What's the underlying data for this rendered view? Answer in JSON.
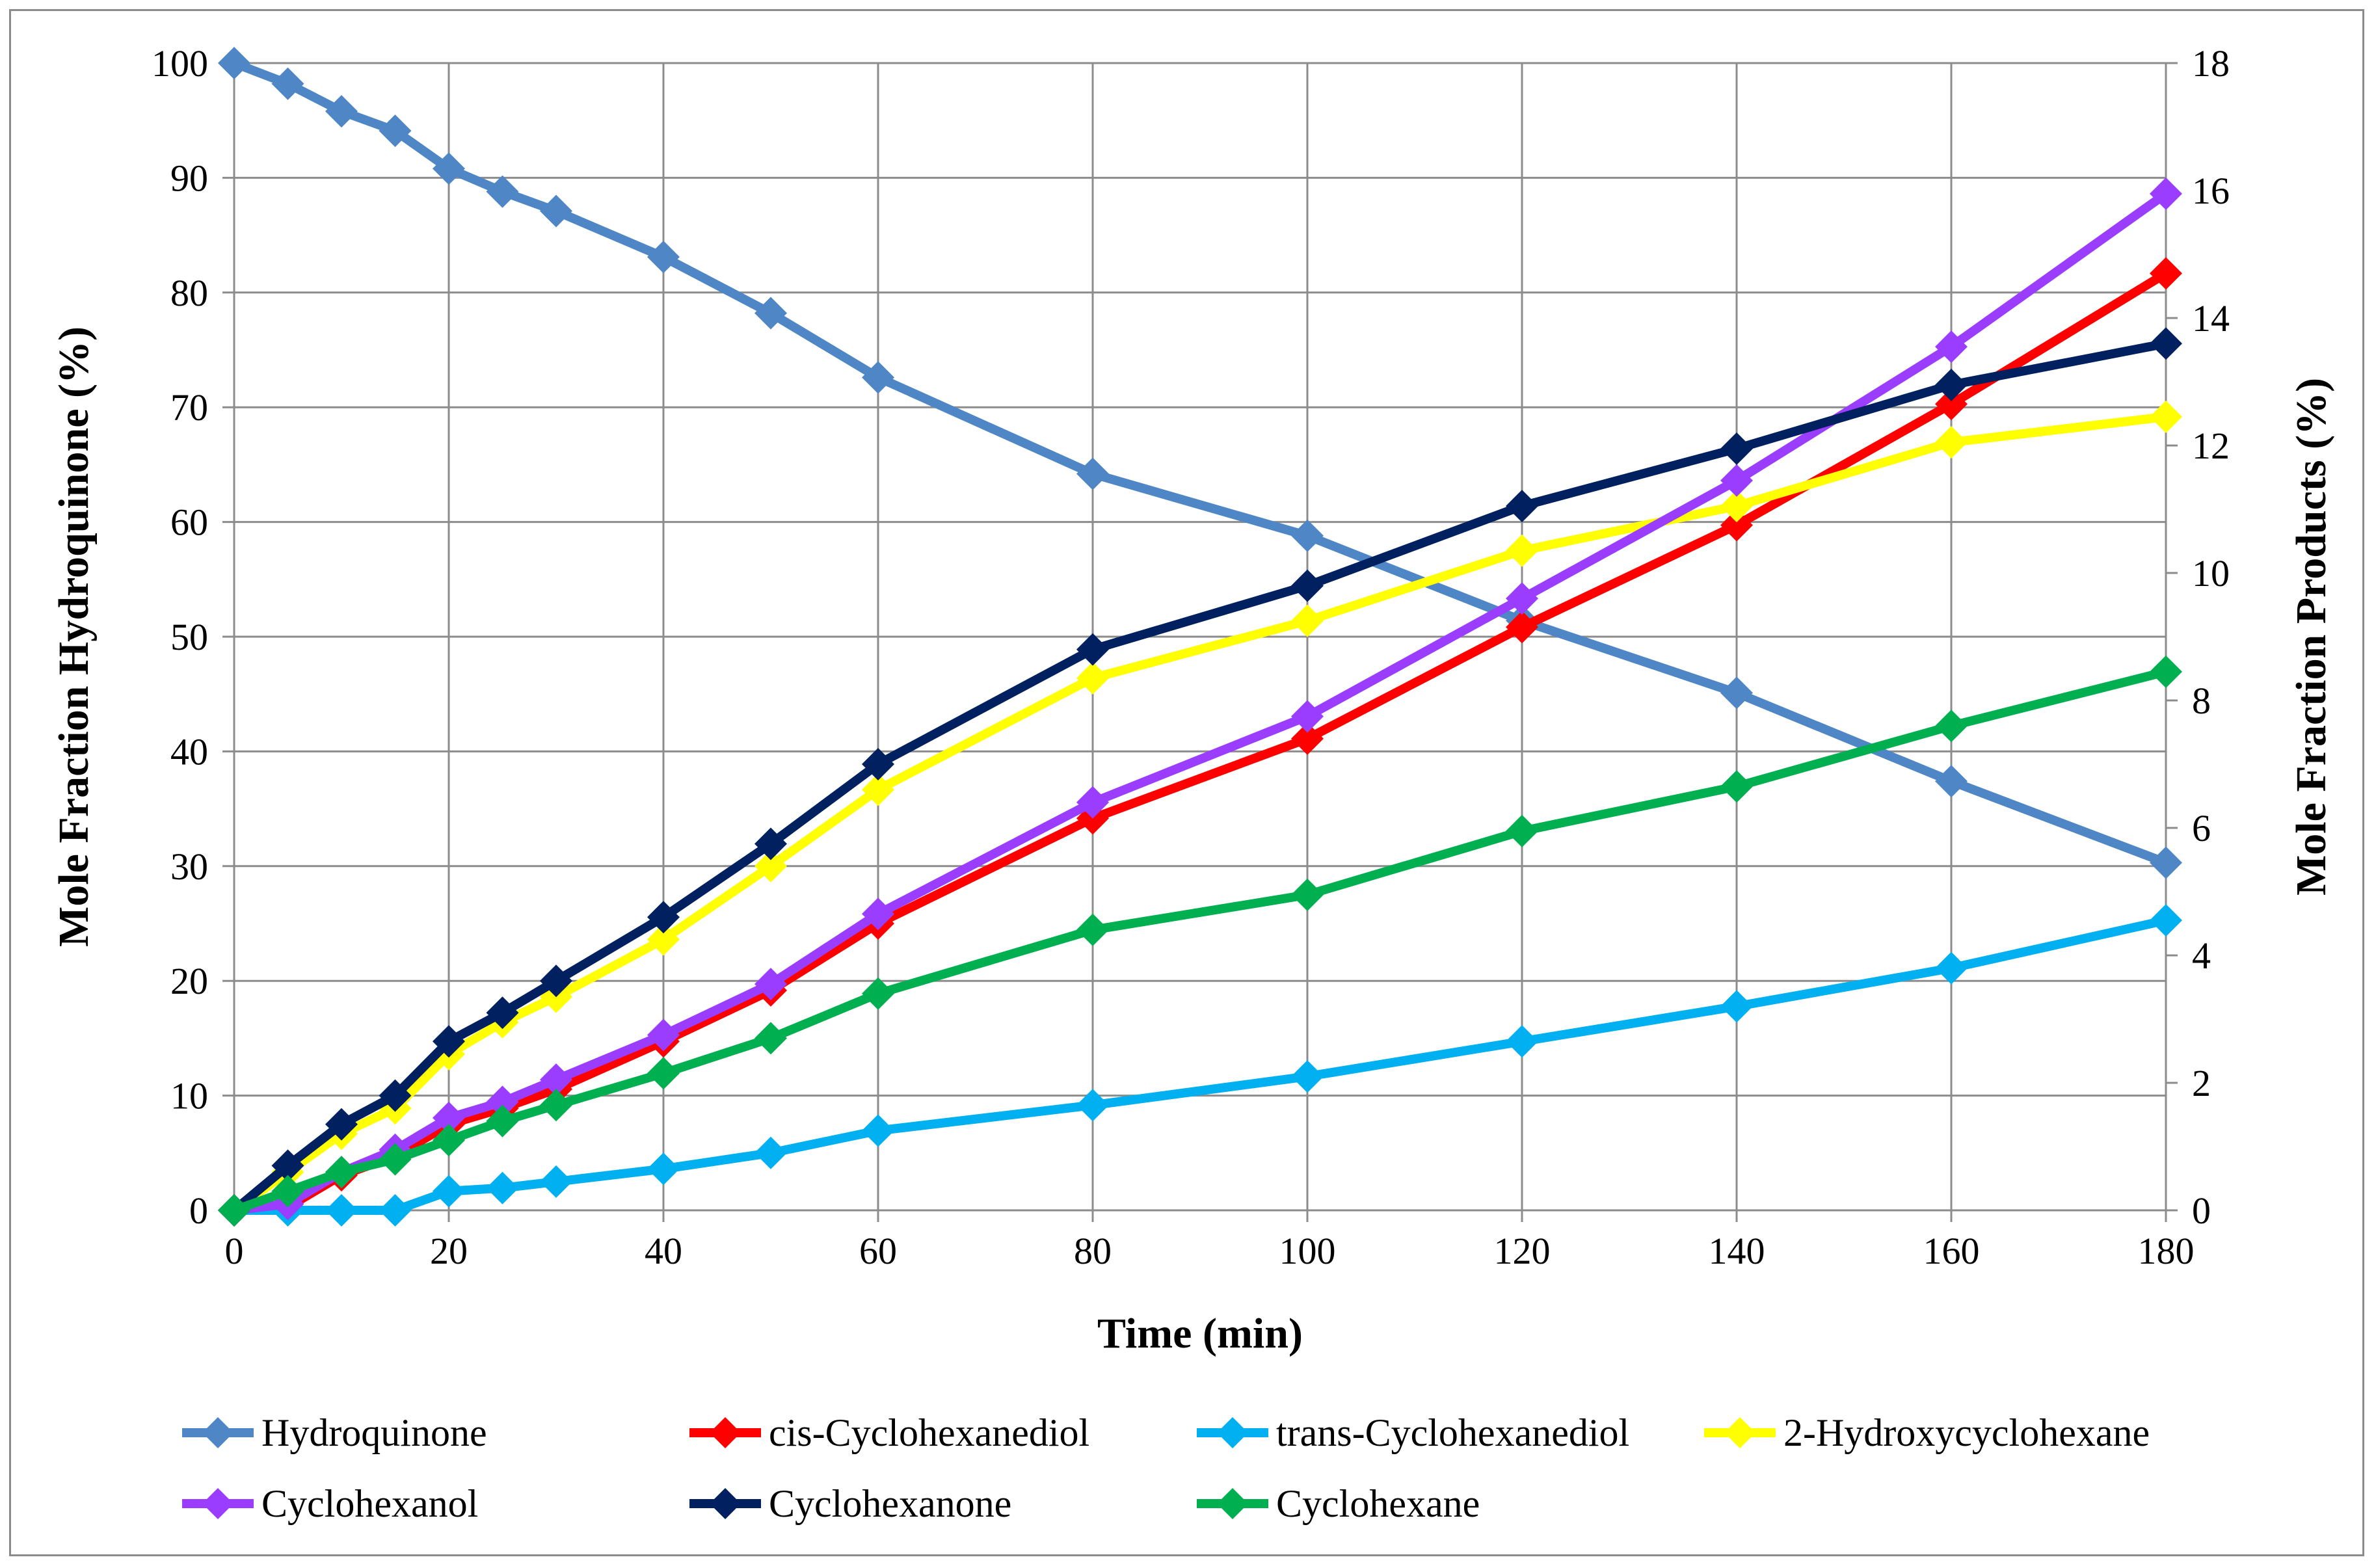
{
  "chart_data": {
    "type": "line",
    "x": [
      0,
      5,
      10,
      15,
      20,
      25,
      30,
      40,
      50,
      60,
      80,
      100,
      120,
      140,
      160,
      180
    ],
    "xlabel": "Time (min)",
    "ylabel": "Mole Fraction Hydroquinone (%)",
    "y2label": "Mole Fraction Products (%)",
    "xlim": [
      0,
      180
    ],
    "ylim": [
      0,
      100
    ],
    "y2lim": [
      0,
      18
    ],
    "xticks": [
      "0",
      "20",
      "40",
      "60",
      "80",
      "100",
      "120",
      "140",
      "160",
      "180"
    ],
    "yticks": [
      "0",
      "10",
      "20",
      "30",
      "40",
      "50",
      "60",
      "70",
      "80",
      "90",
      "100"
    ],
    "y2ticks": [
      "0",
      "2",
      "4",
      "6",
      "8",
      "10",
      "12",
      "14",
      "16",
      "18"
    ],
    "grid": true,
    "legend_position": "bottom",
    "series": [
      {
        "name": "Hydroquinone",
        "axis": "left",
        "color": "#4f86c6",
        "values": [
          100,
          98.2,
          95.8,
          94.1,
          90.8,
          88.8,
          87.1,
          83.1,
          78.2,
          72.6,
          64.2,
          58.8,
          51.4,
          45.1,
          37.4,
          30.3
        ]
      },
      {
        "name": "cis-Cyclohexanediol",
        "axis": "right",
        "color": "#ff0000",
        "values": [
          0,
          0.05,
          0.55,
          0.85,
          1.35,
          1.6,
          1.9,
          2.65,
          3.45,
          4.5,
          6.15,
          7.4,
          9.15,
          10.75,
          12.65,
          14.7
        ]
      },
      {
        "name": "trans-Cyclohexanediol",
        "axis": "right",
        "color": "#00b0f0",
        "values": [
          0,
          0,
          0,
          0,
          0.3,
          0.35,
          0.45,
          0.65,
          0.9,
          1.25,
          1.65,
          2.1,
          2.65,
          3.2,
          3.8,
          4.55
        ]
      },
      {
        "name": "2-Hydroxycyclohexane",
        "axis": "right",
        "color": "#ffff00",
        "values": [
          0,
          0.6,
          1.2,
          1.6,
          2.45,
          2.95,
          3.35,
          4.25,
          5.4,
          6.6,
          8.35,
          9.25,
          10.35,
          11.05,
          12.05,
          12.45
        ]
      },
      {
        "name": "Cyclohexanol",
        "axis": "right",
        "color": "#9b3dff",
        "values": [
          0,
          0.1,
          0.6,
          0.95,
          1.45,
          1.7,
          2.05,
          2.75,
          3.55,
          4.65,
          6.4,
          7.75,
          9.6,
          11.45,
          13.55,
          15.95
        ]
      },
      {
        "name": "Cyclohexanone",
        "axis": "right",
        "color": "#002060",
        "values": [
          0,
          0.7,
          1.35,
          1.8,
          2.65,
          3.1,
          3.6,
          4.6,
          5.75,
          7.0,
          8.8,
          9.8,
          11.05,
          11.95,
          12.95,
          13.6
        ]
      },
      {
        "name": "Cyclohexane",
        "axis": "right",
        "color": "#00b050",
        "values": [
          0,
          0.3,
          0.6,
          0.8,
          1.1,
          1.4,
          1.65,
          2.15,
          2.7,
          3.4,
          4.4,
          4.95,
          5.95,
          6.65,
          7.6,
          8.45
        ]
      }
    ]
  }
}
